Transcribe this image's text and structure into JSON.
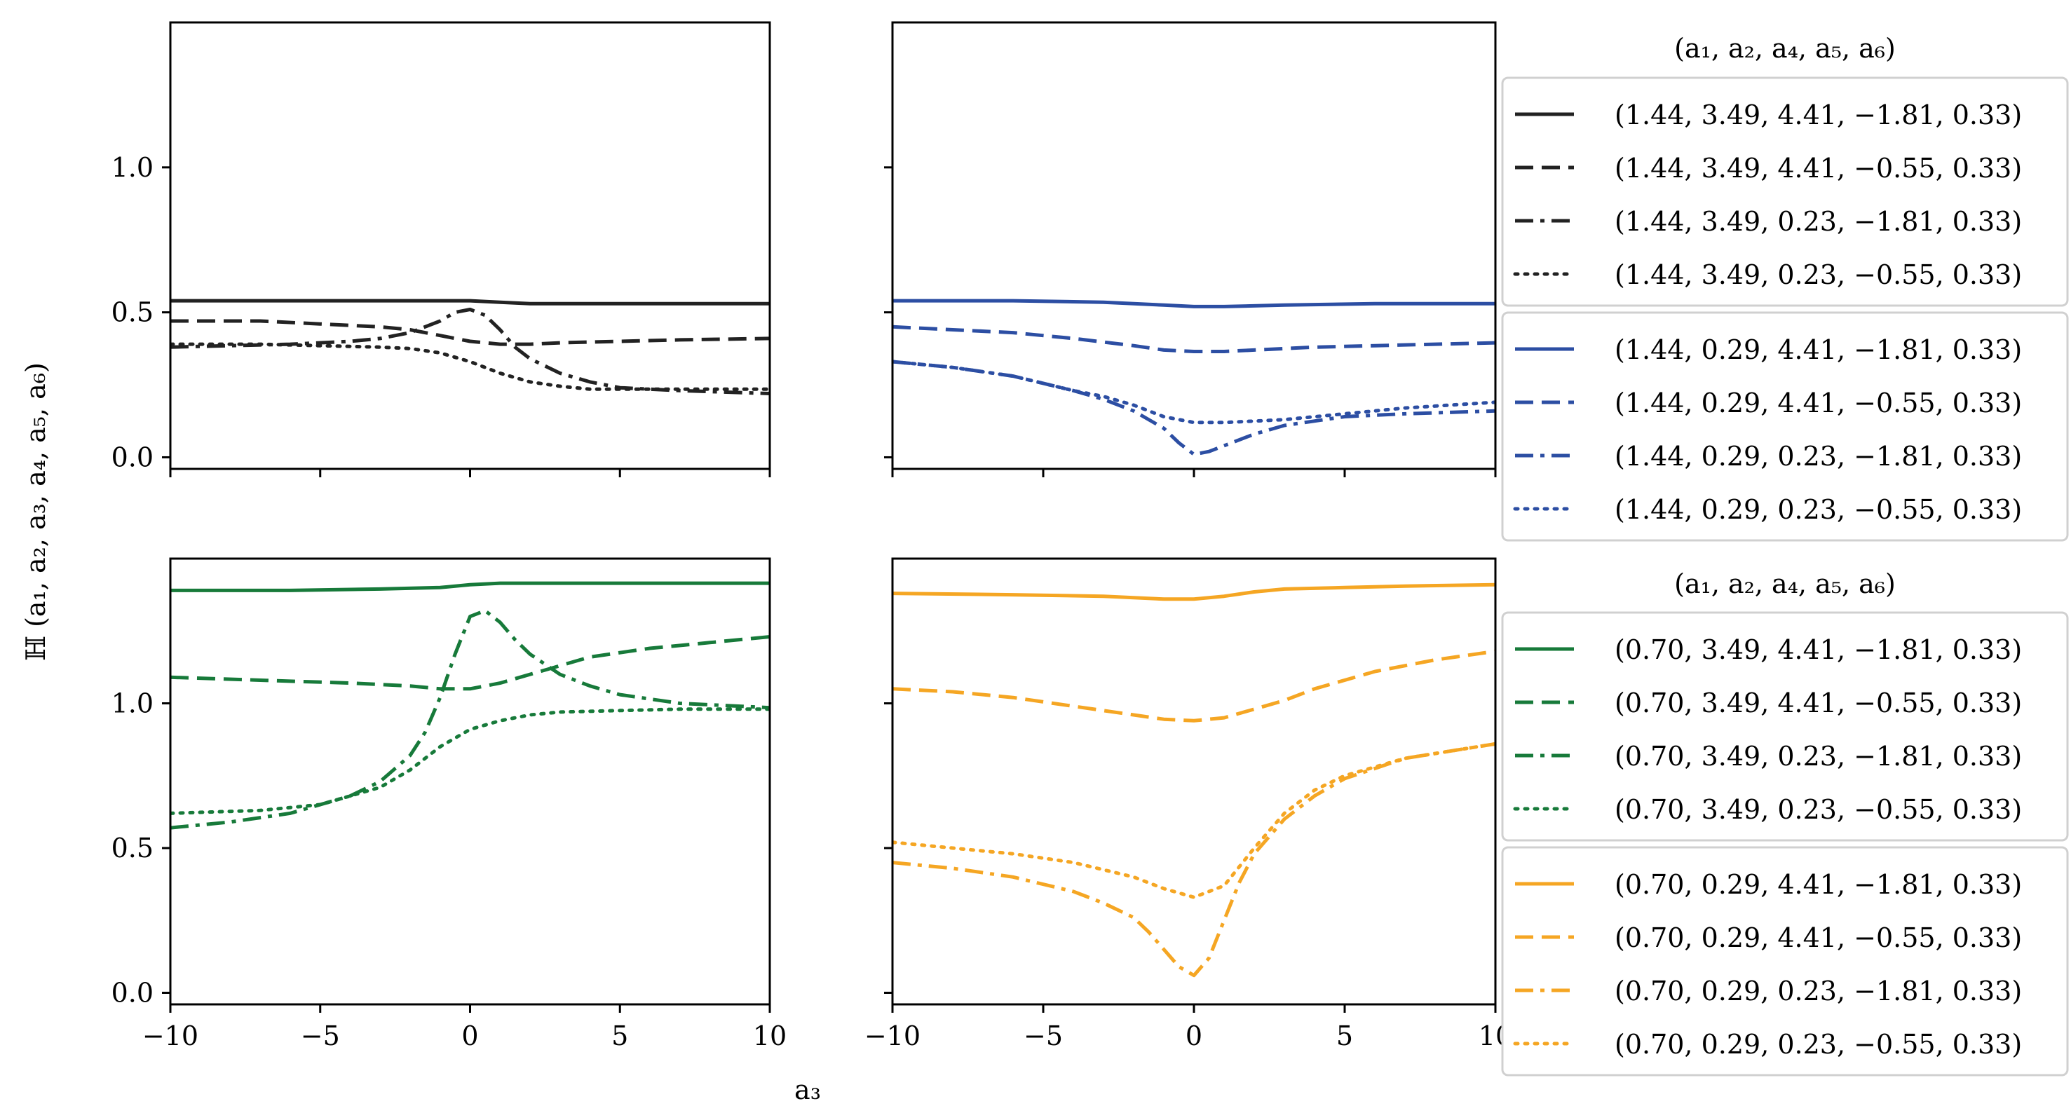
{
  "figure": {
    "ylabel": "ℍ (a₁, a₂, a₃, a₄, a₅, a₆)",
    "xlabel": "a₃",
    "legend_title": "(a₁, a₂, a₄, a₅, a₆)",
    "colors": {
      "black": "#222222",
      "blue": "#2c4ea3",
      "green": "#177a3a",
      "orange": "#f5a623"
    }
  },
  "chart_data": [
    {
      "type": "line",
      "panel": "top-left",
      "color": "#222222",
      "xlim": [
        -10,
        10
      ],
      "ylim": [
        -0.04,
        1.5
      ],
      "xticks": [
        -10,
        -5,
        0,
        5,
        10
      ],
      "xtick_labels": [
        "−10",
        "−5",
        "0",
        "5",
        "10"
      ],
      "yticks": [
        0.0,
        0.5,
        1.0
      ],
      "ytick_labels": [
        "0.0",
        "0.5",
        "1.0"
      ],
      "show_xtick_labels": false,
      "show_ytick_labels": true,
      "series": [
        {
          "name": "(1.44, 3.49, 4.41, −1.81, 0.33)",
          "style": "solid",
          "x": [
            -10,
            -5,
            -2,
            0,
            1,
            2,
            5,
            10
          ],
          "y": [
            0.54,
            0.54,
            0.54,
            0.54,
            0.535,
            0.53,
            0.53,
            0.53
          ]
        },
        {
          "name": "(1.44, 3.49, 4.41, −0.55, 0.33)",
          "style": "dashed",
          "x": [
            -10,
            -7,
            -5,
            -3,
            -2,
            -1,
            0,
            1,
            2,
            3,
            5,
            7,
            10
          ],
          "y": [
            0.47,
            0.47,
            0.46,
            0.45,
            0.44,
            0.42,
            0.4,
            0.39,
            0.39,
            0.395,
            0.4,
            0.405,
            0.41
          ]
        },
        {
          "name": "(1.44, 3.49, 0.23, −1.81, 0.33)",
          "style": "dashdot",
          "x": [
            -10,
            -8,
            -6,
            -4,
            -3,
            -2,
            -1,
            -0.5,
            0,
            0.5,
            1,
            1.5,
            2,
            3,
            4,
            5,
            7,
            10
          ],
          "y": [
            0.38,
            0.385,
            0.39,
            0.4,
            0.41,
            0.43,
            0.47,
            0.5,
            0.51,
            0.49,
            0.44,
            0.38,
            0.34,
            0.29,
            0.26,
            0.24,
            0.23,
            0.22
          ]
        },
        {
          "name": "(1.44, 3.49, 0.23, −0.55, 0.33)",
          "style": "dotted",
          "x": [
            -10,
            -7,
            -5,
            -3,
            -2,
            -1,
            0,
            1,
            2,
            3,
            4,
            5,
            7,
            10
          ],
          "y": [
            0.39,
            0.39,
            0.385,
            0.38,
            0.375,
            0.36,
            0.33,
            0.29,
            0.26,
            0.245,
            0.235,
            0.235,
            0.235,
            0.235
          ]
        }
      ]
    },
    {
      "type": "line",
      "panel": "top-right",
      "color": "#2c4ea3",
      "xlim": [
        -10,
        10
      ],
      "ylim": [
        -0.04,
        1.5
      ],
      "xticks": [
        -10,
        -5,
        0,
        5,
        10
      ],
      "xtick_labels": [
        "−10",
        "−5",
        "0",
        "5",
        "10"
      ],
      "yticks": [
        0.0,
        0.5,
        1.0
      ],
      "ytick_labels": [
        "0.0",
        "0.5",
        "1.0"
      ],
      "show_xtick_labels": false,
      "show_ytick_labels": false,
      "series": [
        {
          "name": "(1.44, 0.29, 4.41, −1.81, 0.33)",
          "style": "solid",
          "x": [
            -10,
            -6,
            -3,
            -1,
            0,
            1,
            3,
            6,
            10
          ],
          "y": [
            0.54,
            0.54,
            0.535,
            0.525,
            0.52,
            0.52,
            0.525,
            0.53,
            0.53
          ]
        },
        {
          "name": "(1.44, 0.29, 4.41, −0.55, 0.33)",
          "style": "dashed",
          "x": [
            -10,
            -8,
            -6,
            -4,
            -2,
            -1,
            0,
            1,
            2,
            4,
            6,
            8,
            10
          ],
          "y": [
            0.45,
            0.44,
            0.43,
            0.41,
            0.385,
            0.37,
            0.365,
            0.365,
            0.37,
            0.38,
            0.385,
            0.39,
            0.395
          ]
        },
        {
          "name": "(1.44, 0.29, 0.23, −1.81, 0.33)",
          "style": "dashdot",
          "x": [
            -10,
            -8,
            -6,
            -4,
            -3,
            -2,
            -1,
            -0.5,
            0,
            0.5,
            1,
            2,
            3,
            5,
            7,
            10
          ],
          "y": [
            0.33,
            0.31,
            0.28,
            0.23,
            0.2,
            0.16,
            0.1,
            0.05,
            0.01,
            0.02,
            0.04,
            0.08,
            0.11,
            0.14,
            0.15,
            0.16
          ]
        },
        {
          "name": "(1.44, 0.29, 0.23, −0.55, 0.33)",
          "style": "dotted",
          "x": [
            -10,
            -8,
            -6,
            -4,
            -3,
            -2,
            -1,
            0,
            1,
            2,
            3,
            5,
            7,
            10
          ],
          "y": [
            0.33,
            0.31,
            0.28,
            0.23,
            0.21,
            0.18,
            0.14,
            0.12,
            0.12,
            0.125,
            0.13,
            0.15,
            0.17,
            0.19
          ]
        }
      ]
    },
    {
      "type": "line",
      "panel": "bottom-left",
      "color": "#177a3a",
      "xlim": [
        -10,
        10
      ],
      "ylim": [
        -0.04,
        1.5
      ],
      "xticks": [
        -10,
        -5,
        0,
        5,
        10
      ],
      "xtick_labels": [
        "−10",
        "−5",
        "0",
        "5",
        "10"
      ],
      "yticks": [
        0.0,
        0.5,
        1.0
      ],
      "ytick_labels": [
        "0.0",
        "0.5",
        "1.0"
      ],
      "show_xtick_labels": true,
      "show_ytick_labels": true,
      "series": [
        {
          "name": "(0.70, 3.49, 4.41, −1.81, 0.33)",
          "style": "solid",
          "x": [
            -10,
            -6,
            -3,
            -1,
            0,
            1,
            3,
            6,
            10
          ],
          "y": [
            1.39,
            1.39,
            1.395,
            1.4,
            1.41,
            1.415,
            1.415,
            1.415,
            1.415
          ]
        },
        {
          "name": "(0.70, 3.49, 4.41, −0.55, 0.33)",
          "style": "dashed",
          "x": [
            -10,
            -7,
            -4,
            -2,
            -1,
            0,
            1,
            2,
            3,
            4,
            6,
            8,
            10
          ],
          "y": [
            1.09,
            1.08,
            1.07,
            1.06,
            1.05,
            1.05,
            1.07,
            1.1,
            1.13,
            1.16,
            1.19,
            1.21,
            1.23
          ]
        },
        {
          "name": "(0.70, 3.49, 0.23, −1.81, 0.33)",
          "style": "dashdot",
          "x": [
            -10,
            -8,
            -6,
            -4,
            -3,
            -2,
            -1.5,
            -1,
            -0.5,
            0,
            0.5,
            1,
            1.5,
            2,
            3,
            4,
            5,
            7,
            10
          ],
          "y": [
            0.57,
            0.59,
            0.62,
            0.68,
            0.73,
            0.82,
            0.9,
            1.02,
            1.17,
            1.3,
            1.32,
            1.28,
            1.22,
            1.17,
            1.1,
            1.06,
            1.03,
            1.0,
            0.985
          ]
        },
        {
          "name": "(0.70, 3.49, 0.23, −0.55, 0.33)",
          "style": "dotted",
          "x": [
            -10,
            -7,
            -5,
            -3,
            -2,
            -1,
            0,
            1,
            2,
            3,
            5,
            7,
            10
          ],
          "y": [
            0.62,
            0.63,
            0.65,
            0.71,
            0.77,
            0.85,
            0.91,
            0.94,
            0.96,
            0.97,
            0.975,
            0.98,
            0.98
          ]
        }
      ]
    },
    {
      "type": "line",
      "panel": "bottom-right",
      "color": "#f5a623",
      "xlim": [
        -10,
        10
      ],
      "ylim": [
        -0.04,
        1.5
      ],
      "xticks": [
        -10,
        -5,
        0,
        5,
        10
      ],
      "xtick_labels": [
        "−10",
        "−5",
        "0",
        "5",
        "10"
      ],
      "yticks": [
        0.0,
        0.5,
        1.0
      ],
      "ytick_labels": [
        "0.0",
        "0.5",
        "1.0"
      ],
      "show_xtick_labels": true,
      "show_ytick_labels": false,
      "series": [
        {
          "name": "(0.70, 0.29, 4.41, −1.81, 0.33)",
          "style": "solid",
          "x": [
            -10,
            -6,
            -3,
            -1,
            0,
            1,
            2,
            3,
            5,
            7,
            10
          ],
          "y": [
            1.38,
            1.375,
            1.37,
            1.36,
            1.36,
            1.37,
            1.385,
            1.395,
            1.4,
            1.405,
            1.41
          ]
        },
        {
          "name": "(0.70, 0.29, 4.41, −0.55, 0.33)",
          "style": "dashed",
          "x": [
            -10,
            -8,
            -6,
            -4,
            -2,
            -1,
            0,
            1,
            2,
            3,
            4,
            6,
            8,
            10
          ],
          "y": [
            1.05,
            1.04,
            1.02,
            0.99,
            0.96,
            0.945,
            0.94,
            0.95,
            0.98,
            1.01,
            1.05,
            1.11,
            1.15,
            1.18
          ]
        },
        {
          "name": "(0.70, 0.29, 0.23, −1.81, 0.33)",
          "style": "dashdot",
          "x": [
            -10,
            -8,
            -6,
            -4,
            -3,
            -2,
            -1.5,
            -1,
            -0.5,
            0,
            0.5,
            1,
            1.5,
            2,
            3,
            4,
            5,
            7,
            10
          ],
          "y": [
            0.45,
            0.43,
            0.4,
            0.35,
            0.31,
            0.26,
            0.21,
            0.15,
            0.09,
            0.06,
            0.12,
            0.25,
            0.38,
            0.48,
            0.6,
            0.68,
            0.74,
            0.81,
            0.86
          ]
        },
        {
          "name": "(0.70, 0.29, 0.23, −0.55, 0.33)",
          "style": "dotted",
          "x": [
            -10,
            -8,
            -6,
            -4,
            -2,
            -1,
            0,
            1,
            2,
            3,
            4,
            5,
            7,
            10
          ],
          "y": [
            0.52,
            0.5,
            0.48,
            0.45,
            0.4,
            0.36,
            0.33,
            0.37,
            0.5,
            0.62,
            0.7,
            0.75,
            0.81,
            0.86
          ]
        }
      ]
    }
  ]
}
